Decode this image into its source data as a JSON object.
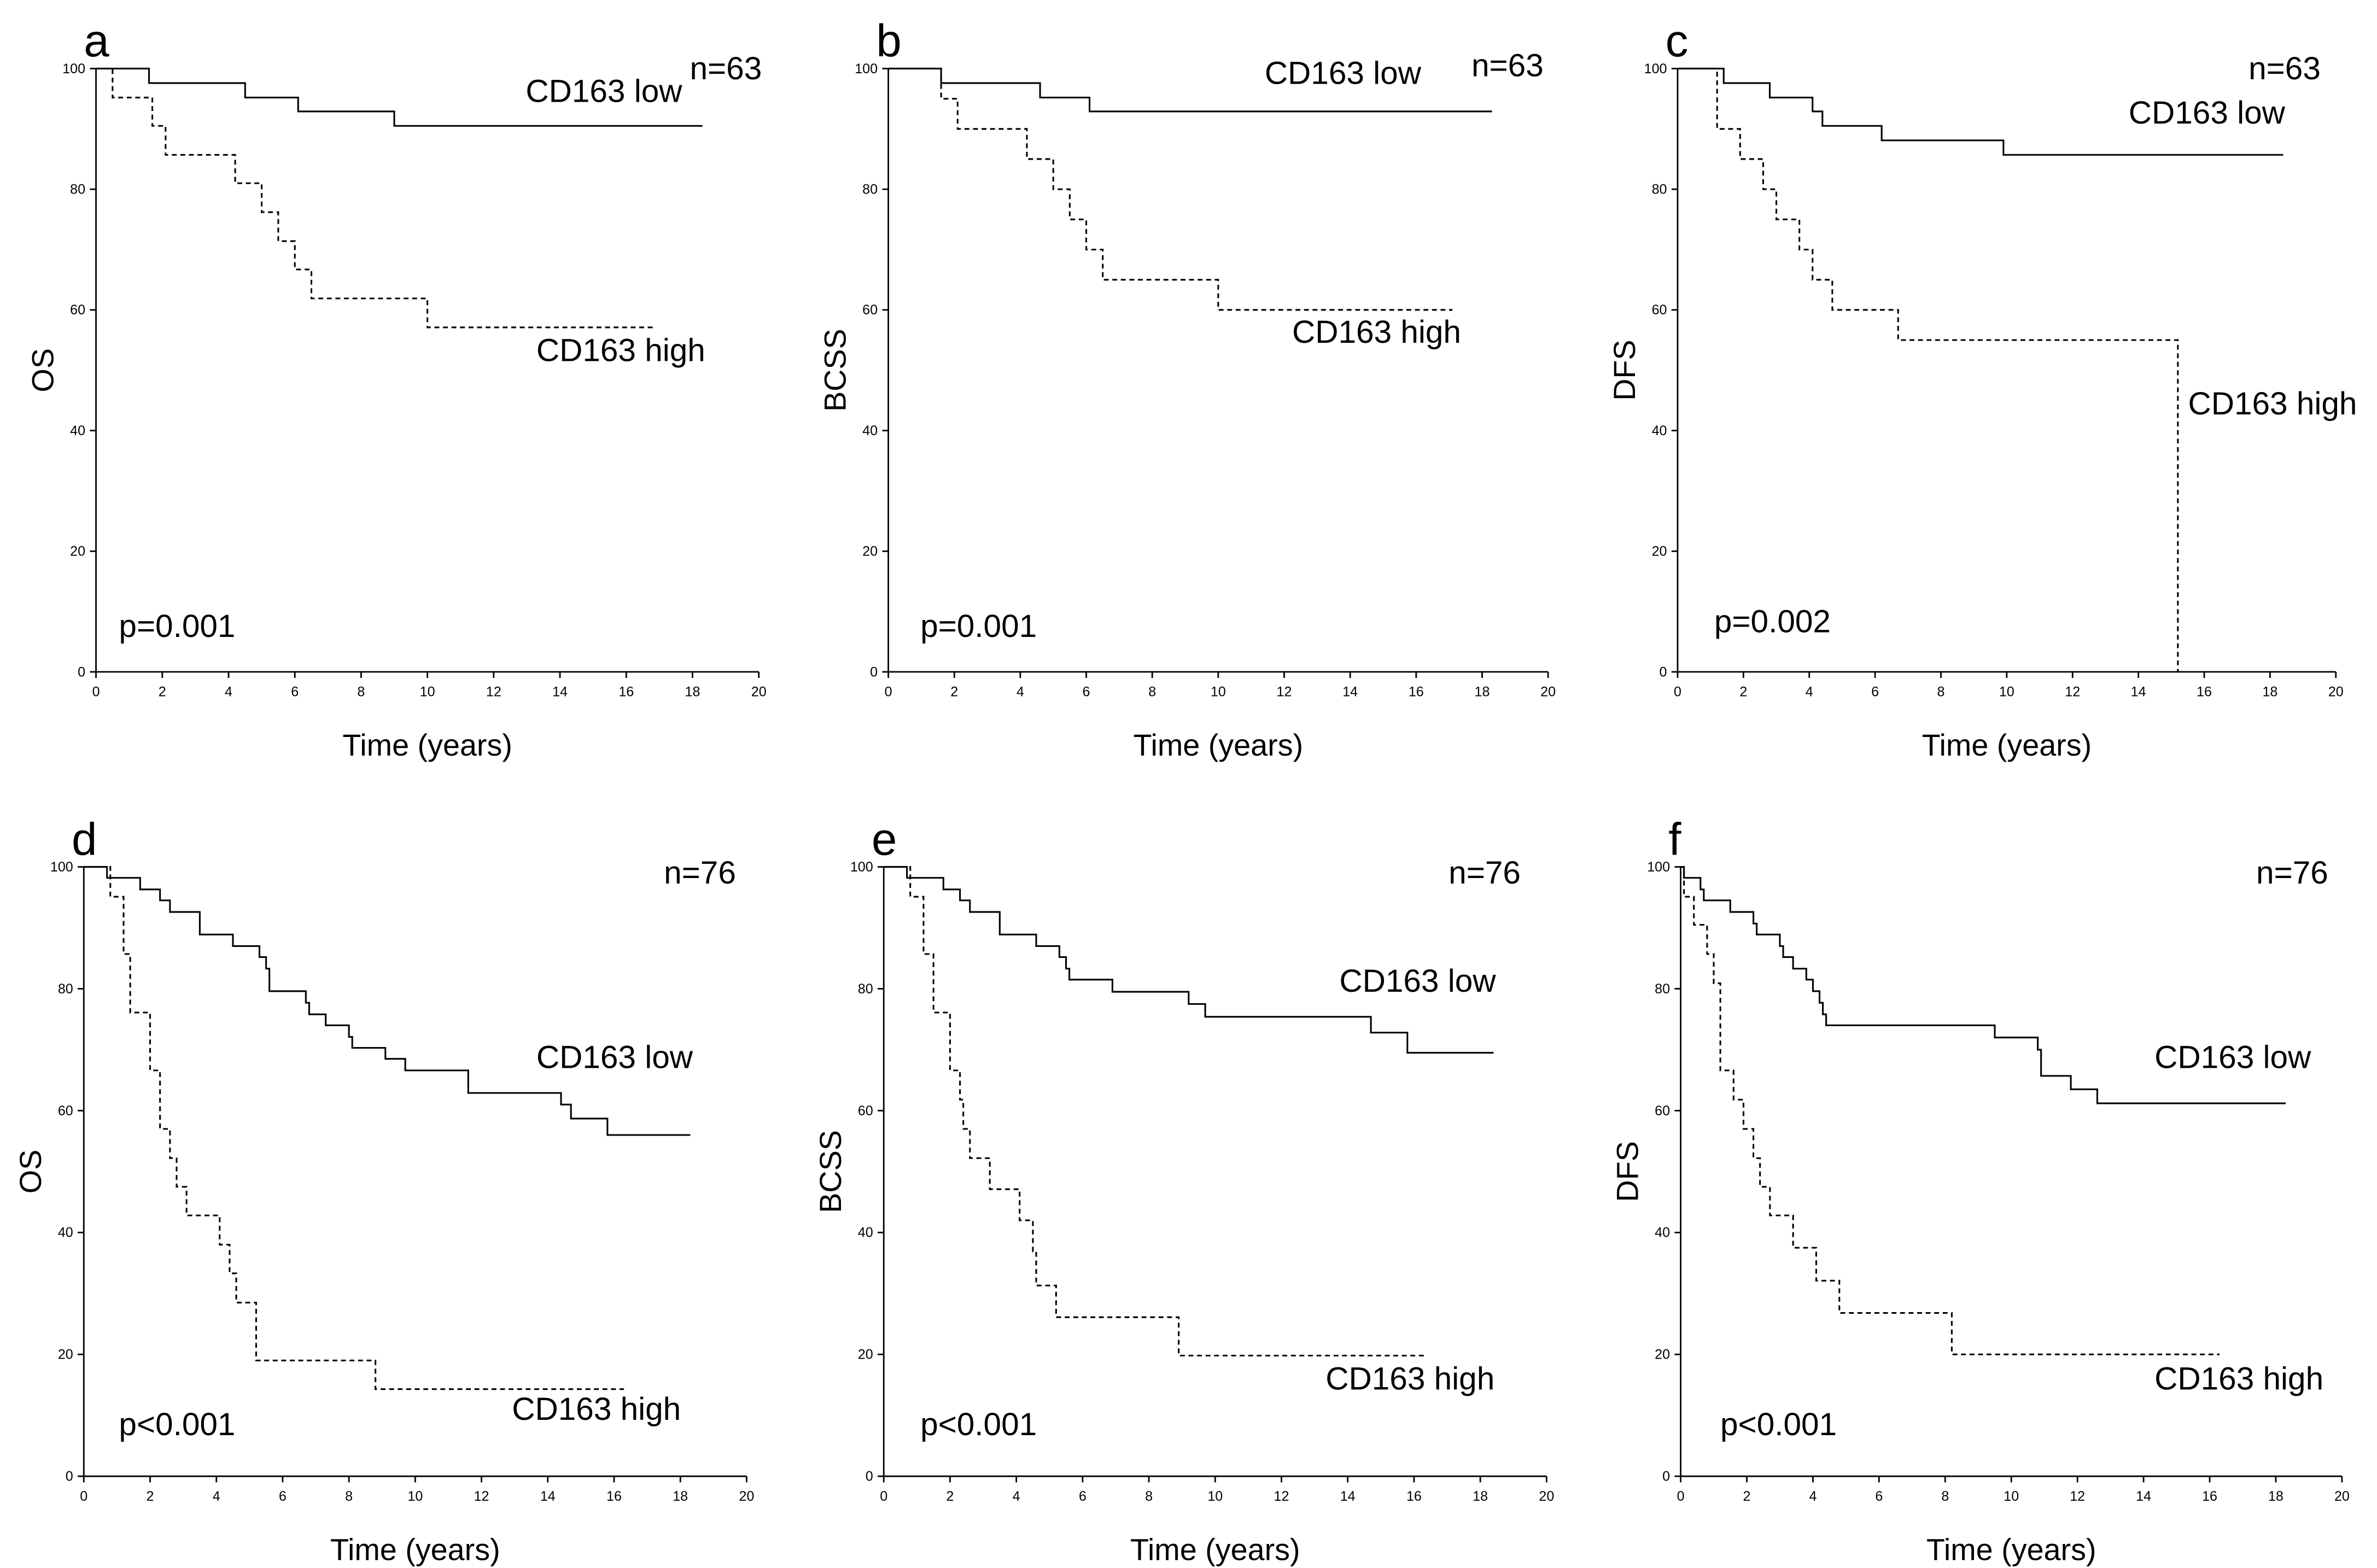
{
  "chart_data": [
    {
      "panel": "a",
      "type": "line",
      "subtype": "kaplan-meier",
      "xlabel": "Time (years)",
      "ylabel": "OS",
      "xlim": [
        0,
        20
      ],
      "ylim": [
        0,
        100
      ],
      "xticks": [
        0,
        2,
        4,
        6,
        8,
        10,
        12,
        14,
        16,
        18,
        20
      ],
      "yticks": [
        0,
        20,
        40,
        60,
        80,
        100
      ],
      "n_label": "n=63",
      "p_label": "p=0.001",
      "series": [
        {
          "name": "CD163 low",
          "style": "solid",
          "steps": [
            [
              1.6,
              97.6
            ],
            [
              4.5,
              95.2
            ],
            [
              6.1,
              92.9
            ],
            [
              9.0,
              90.5
            ]
          ],
          "end": 18.3
        },
        {
          "name": "CD163 high",
          "style": "dashed",
          "steps": [
            [
              0.5,
              95.2
            ],
            [
              1.7,
              90.5
            ],
            [
              2.1,
              85.7
            ],
            [
              4.2,
              81.0
            ],
            [
              5.0,
              76.2
            ],
            [
              5.5,
              71.4
            ],
            [
              6.0,
              66.7
            ],
            [
              6.5,
              61.9
            ],
            [
              10.0,
              57.1
            ]
          ],
          "end": 16.9
        }
      ]
    },
    {
      "panel": "b",
      "type": "line",
      "subtype": "kaplan-meier",
      "xlabel": "Time (years)",
      "ylabel": "BCSS",
      "xlim": [
        0,
        20
      ],
      "ylim": [
        0,
        100
      ],
      "xticks": [
        0,
        2,
        4,
        6,
        8,
        10,
        12,
        14,
        16,
        18,
        20
      ],
      "yticks": [
        0,
        20,
        40,
        60,
        80,
        100
      ],
      "n_label": "n=63",
      "p_label": "p=0.001",
      "series": [
        {
          "name": "CD163 low",
          "style": "solid",
          "steps": [
            [
              1.6,
              97.6
            ],
            [
              4.6,
              95.2
            ],
            [
              6.1,
              92.9
            ]
          ],
          "end": 18.3
        },
        {
          "name": "CD163 high",
          "style": "dashed",
          "steps": [
            [
              1.6,
              95
            ],
            [
              2.1,
              90
            ],
            [
              4.2,
              85
            ],
            [
              5.0,
              80
            ],
            [
              5.5,
              75
            ],
            [
              6.0,
              70
            ],
            [
              6.5,
              65
            ],
            [
              10.0,
              60
            ]
          ],
          "end": 17.1
        }
      ]
    },
    {
      "panel": "c",
      "type": "line",
      "subtype": "kaplan-meier",
      "xlabel": "Time (years)",
      "ylabel": "DFS",
      "xlim": [
        0,
        20
      ],
      "ylim": [
        0,
        100
      ],
      "xticks": [
        0,
        2,
        4,
        6,
        8,
        10,
        12,
        14,
        16,
        18,
        20
      ],
      "yticks": [
        0,
        20,
        40,
        60,
        80,
        100
      ],
      "n_label": "n=63",
      "p_label": "p=0.002",
      "series": [
        {
          "name": "CD163 low",
          "style": "solid",
          "steps": [
            [
              1.4,
              97.6
            ],
            [
              2.8,
              95.2
            ],
            [
              4.1,
              92.9
            ],
            [
              4.4,
              90.5
            ],
            [
              6.2,
              88.1
            ],
            [
              9.9,
              85.7
            ]
          ],
          "end": 18.4
        },
        {
          "name": "CD163 high",
          "style": "dashed",
          "steps": [
            [
              1.2,
              90
            ],
            [
              1.9,
              85
            ],
            [
              2.6,
              80
            ],
            [
              3.0,
              75
            ],
            [
              3.7,
              70
            ],
            [
              4.1,
              65
            ],
            [
              4.7,
              60
            ],
            [
              6.7,
              55
            ],
            [
              15.2,
              0
            ]
          ],
          "end": 15.2
        }
      ]
    },
    {
      "panel": "d",
      "type": "line",
      "subtype": "kaplan-meier",
      "xlabel": "Time (years)",
      "ylabel": "OS",
      "xlim": [
        0,
        20
      ],
      "ylim": [
        0,
        100
      ],
      "xticks": [
        0,
        2,
        4,
        6,
        8,
        10,
        12,
        14,
        16,
        18,
        20
      ],
      "yticks": [
        0,
        20,
        40,
        60,
        80,
        100
      ],
      "n_label": "n=76",
      "p_label": "p<0.001",
      "series": [
        {
          "name": "CD163 low",
          "style": "solid",
          "steps": [
            [
              0.7,
              98.2
            ],
            [
              1.7,
              96.3
            ],
            [
              2.3,
              94.5
            ],
            [
              2.6,
              92.6
            ],
            [
              3.5,
              88.9
            ],
            [
              4.5,
              87.0
            ],
            [
              5.3,
              85.2
            ],
            [
              5.5,
              83.3
            ],
            [
              5.6,
              79.6
            ],
            [
              6.7,
              77.7
            ],
            [
              6.8,
              75.8
            ],
            [
              7.3,
              74.0
            ],
            [
              8.0,
              72.1
            ],
            [
              8.1,
              70.3
            ],
            [
              9.1,
              68.5
            ],
            [
              9.7,
              66.6
            ],
            [
              11.6,
              62.9
            ],
            [
              14.4,
              61.0
            ],
            [
              14.7,
              58.7
            ],
            [
              15.8,
              56.0
            ]
          ],
          "end": 18.3
        },
        {
          "name": "CD163 high",
          "style": "dashed",
          "steps": [
            [
              0.8,
              95.1
            ],
            [
              1.2,
              85.7
            ],
            [
              1.4,
              76.1
            ],
            [
              2.0,
              66.6
            ],
            [
              2.3,
              61.7
            ],
            [
              2.3,
              57.0
            ],
            [
              2.6,
              52.2
            ],
            [
              2.8,
              47.5
            ],
            [
              3.1,
              42.8
            ],
            [
              4.1,
              38.0
            ],
            [
              4.4,
              33.3
            ],
            [
              4.6,
              28.5
            ],
            [
              5.2,
              19.0
            ],
            [
              8.8,
              14.3
            ]
          ],
          "end": 16.3
        }
      ]
    },
    {
      "panel": "e",
      "type": "line",
      "subtype": "kaplan-meier",
      "xlabel": "Time (years)",
      "ylabel": "BCSS",
      "xlim": [
        0,
        20
      ],
      "ylim": [
        0,
        100
      ],
      "xticks": [
        0,
        2,
        4,
        6,
        8,
        10,
        12,
        14,
        16,
        18,
        20
      ],
      "yticks": [
        0,
        20,
        40,
        60,
        80,
        100
      ],
      "n_label": "n=76",
      "p_label": "p<0.001",
      "series": [
        {
          "name": "CD163 low",
          "style": "solid",
          "steps": [
            [
              0.7,
              98.2
            ],
            [
              1.8,
              96.3
            ],
            [
              2.3,
              94.5
            ],
            [
              2.6,
              92.6
            ],
            [
              3.5,
              88.9
            ],
            [
              4.6,
              87.0
            ],
            [
              5.3,
              85.2
            ],
            [
              5.5,
              83.3
            ],
            [
              5.6,
              81.5
            ],
            [
              6.9,
              79.5
            ],
            [
              9.2,
              77.5
            ],
            [
              9.7,
              75.4
            ],
            [
              14.7,
              72.8
            ],
            [
              15.8,
              69.5
            ]
          ],
          "end": 18.4
        },
        {
          "name": "CD163 high",
          "style": "dashed",
          "steps": [
            [
              0.8,
              95.1
            ],
            [
              1.2,
              85.7
            ],
            [
              1.5,
              76.1
            ],
            [
              2.0,
              66.6
            ],
            [
              2.3,
              61.8
            ],
            [
              2.4,
              57.0
            ],
            [
              2.6,
              52.2
            ],
            [
              3.2,
              47.1
            ],
            [
              4.1,
              42.0
            ],
            [
              4.5,
              36.9
            ],
            [
              4.6,
              31.3
            ],
            [
              5.2,
              26.1
            ],
            [
              8.9,
              19.8
            ]
          ],
          "end": 16.3
        }
      ]
    },
    {
      "panel": "f",
      "type": "line",
      "subtype": "kaplan-meier",
      "xlabel": "Time (years)",
      "ylabel": "DFS",
      "xlim": [
        0,
        20
      ],
      "ylim": [
        0,
        100
      ],
      "xticks": [
        0,
        2,
        4,
        6,
        8,
        10,
        12,
        14,
        16,
        18,
        20
      ],
      "yticks": [
        0,
        20,
        40,
        60,
        80,
        100
      ],
      "n_label": "n=76",
      "p_label": "p<0.001",
      "series": [
        {
          "name": "CD163 low",
          "style": "solid",
          "steps": [
            [
              0.1,
              98.2
            ],
            [
              0.6,
              96.3
            ],
            [
              0.7,
              94.5
            ],
            [
              1.5,
              92.6
            ],
            [
              2.2,
              90.7
            ],
            [
              2.3,
              88.9
            ],
            [
              3.0,
              87.0
            ],
            [
              3.1,
              85.2
            ],
            [
              3.4,
              83.3
            ],
            [
              3.8,
              81.5
            ],
            [
              4.0,
              79.6
            ],
            [
              4.2,
              77.7
            ],
            [
              4.3,
              75.8
            ],
            [
              4.4,
              74.0
            ],
            [
              9.5,
              72.0
            ],
            [
              10.8,
              70.0
            ],
            [
              10.9,
              65.7
            ],
            [
              11.8,
              63.5
            ],
            [
              12.6,
              61.2
            ]
          ],
          "end": 18.3
        },
        {
          "name": "CD163 high",
          "style": "dashed",
          "steps": [
            [
              0.1,
              95.1
            ],
            [
              0.4,
              90.5
            ],
            [
              0.8,
              85.7
            ],
            [
              1.0,
              80.9
            ],
            [
              1.2,
              66.6
            ],
            [
              1.6,
              61.8
            ],
            [
              1.9,
              57.0
            ],
            [
              2.2,
              52.2
            ],
            [
              2.4,
              47.5
            ],
            [
              2.7,
              42.8
            ],
            [
              3.4,
              37.5
            ],
            [
              4.1,
              32.1
            ],
            [
              4.8,
              26.8
            ],
            [
              8.2,
              20.0
            ]
          ],
          "end": 16.3
        }
      ]
    }
  ]
}
